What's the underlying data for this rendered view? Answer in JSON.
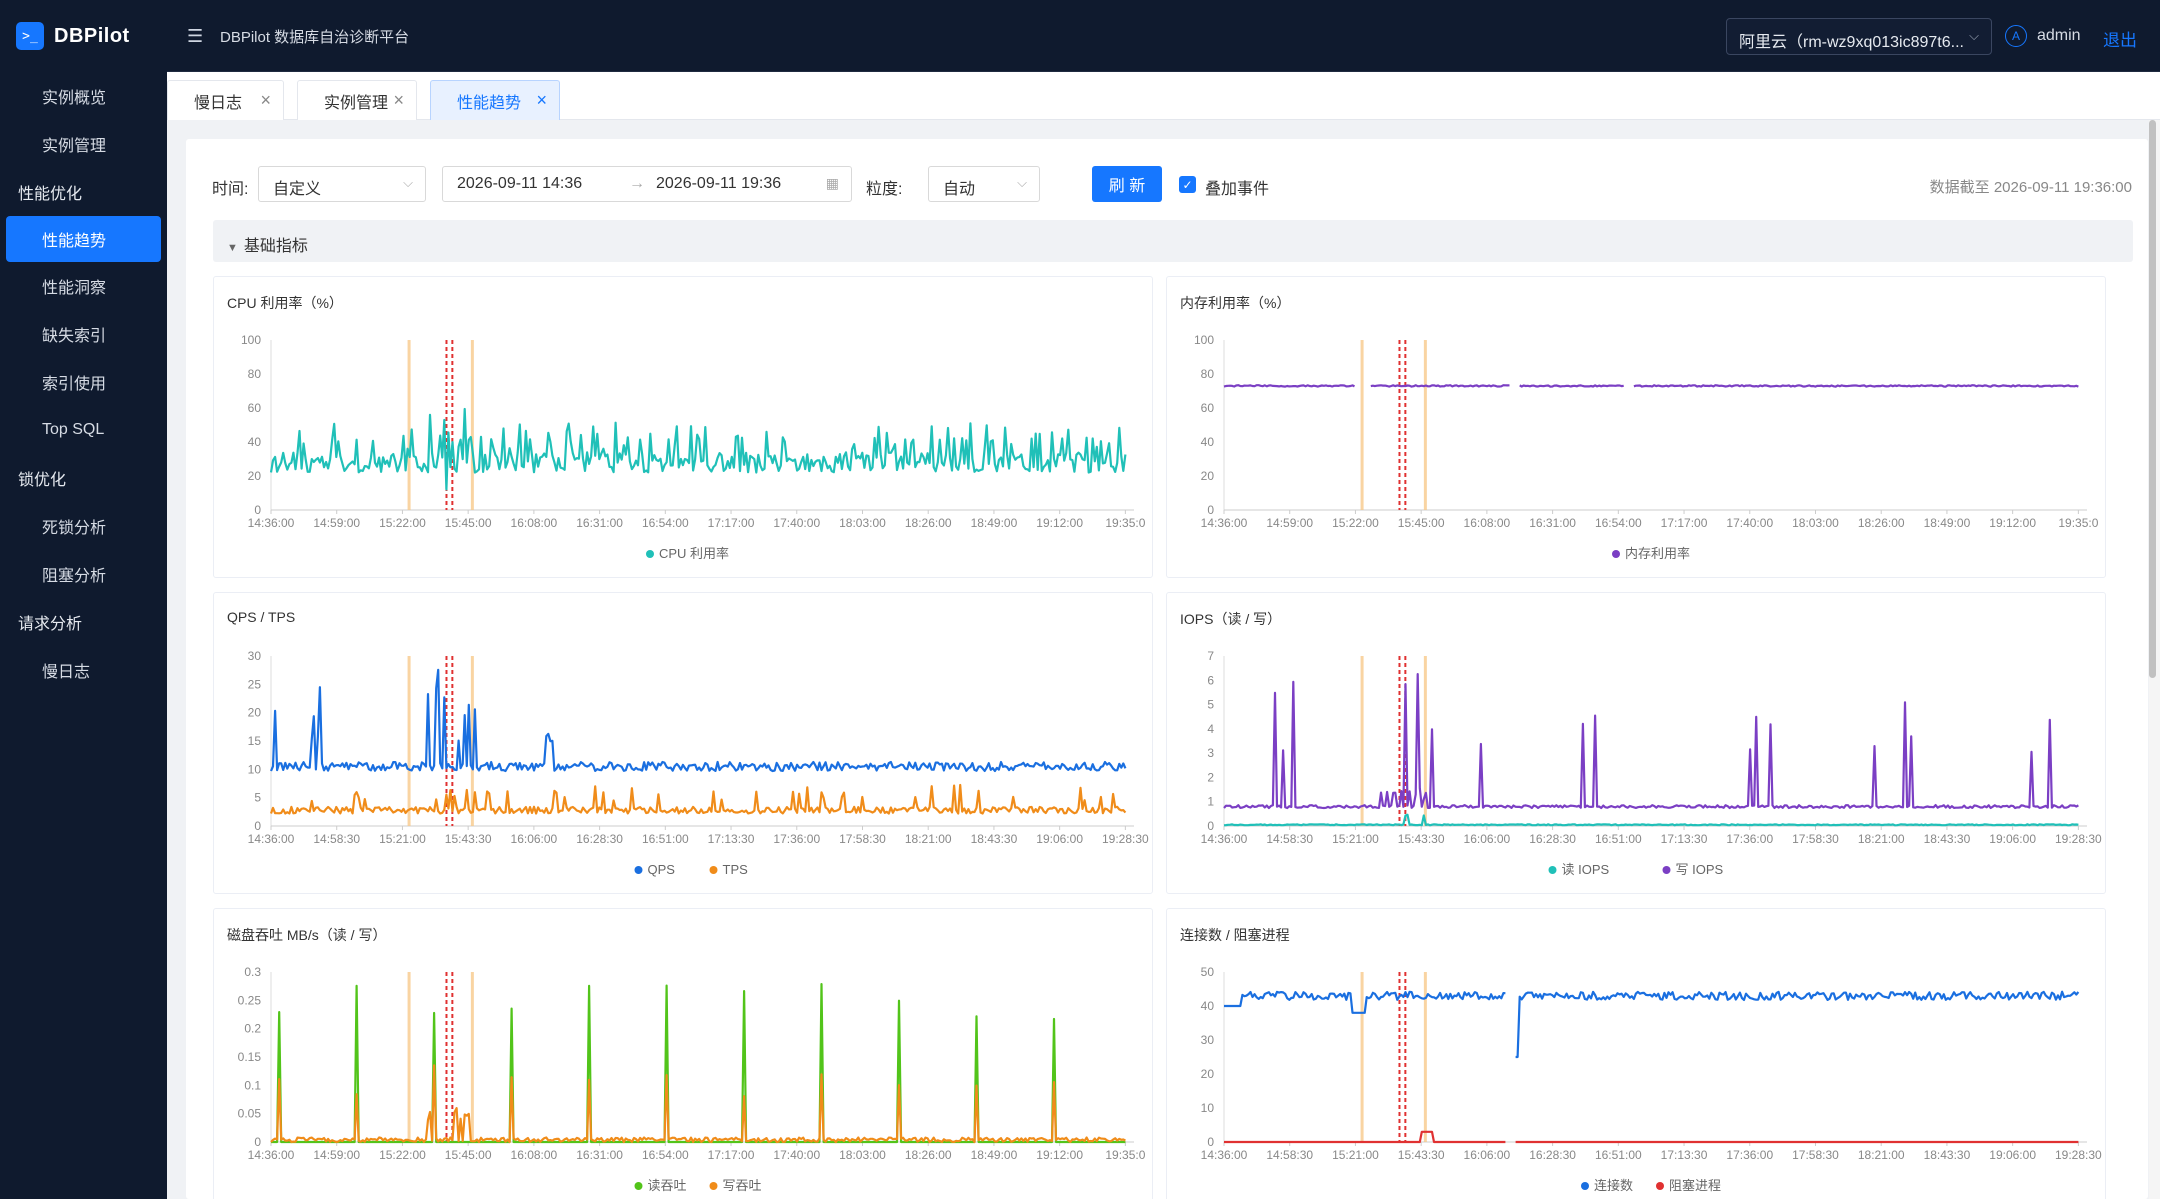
{
  "app": {
    "logo_glyph": ">_",
    "logo_text": "DBPilot",
    "title": "DBPilot 数据库自治诊断平台"
  },
  "header": {
    "instance": "阿里云（rm-wz9xq013ic897t6...",
    "avatar_initial": "A",
    "username": "admin",
    "logout": "退出"
  },
  "sidebar": {
    "items": [
      {
        "label": "实例概览",
        "type": "sub"
      },
      {
        "label": "实例管理",
        "type": "sub"
      },
      {
        "label": "性能优化",
        "type": "group"
      },
      {
        "label": "性能趋势",
        "type": "sub",
        "active": true
      },
      {
        "label": "性能洞察",
        "type": "sub"
      },
      {
        "label": "缺失索引",
        "type": "sub"
      },
      {
        "label": "索引使用",
        "type": "sub"
      },
      {
        "label": "Top SQL",
        "type": "sub"
      },
      {
        "label": "锁优化",
        "type": "group"
      },
      {
        "label": "死锁分析",
        "type": "sub"
      },
      {
        "label": "阻塞分析",
        "type": "sub"
      },
      {
        "label": "请求分析",
        "type": "group"
      },
      {
        "label": "慢日志",
        "type": "sub"
      }
    ]
  },
  "tabs": [
    {
      "label": "慢日志",
      "active": false
    },
    {
      "label": "实例管理",
      "active": false
    },
    {
      "label": "性能趋势",
      "active": true
    }
  ],
  "filters": {
    "time_label": "时间:",
    "time_mode": "自定义",
    "range_start": "2026-09-11 14:36",
    "range_sep": "→",
    "range_end": "2026-09-11 19:36",
    "granularity_label": "粒度:",
    "granularity": "自动",
    "refresh": "刷 新",
    "overlay_events": "叠加事件",
    "overlay_checked": true,
    "data_as_of": "数据截至 2026-09-11 19:36:00"
  },
  "section": {
    "title": "基础指标"
  },
  "colors": {
    "accent": "#1677ff",
    "sidebar_bg": "#0f1a2e",
    "event_marker": "#e03131",
    "event_band": "#f7c98b"
  },
  "chart_data": [
    {
      "id": "cpu",
      "type": "line",
      "title": "CPU 利用率（%）",
      "ylim": [
        0,
        100
      ],
      "y_ticks": [
        "0",
        "20",
        "40",
        "60",
        "80",
        "100"
      ],
      "x_ticks": [
        "14:36:00",
        "14:59:00",
        "15:22:00",
        "15:45:00",
        "16:08:00",
        "16:31:00",
        "16:54:00",
        "17:17:00",
        "17:40:00",
        "18:03:00",
        "18:26:00",
        "18:49:00",
        "19:12:00",
        "19:35:0"
      ],
      "events": {
        "bands": [
          "15:24",
          "15:46"
        ],
        "markers": [
          "15:37",
          "15:38"
        ]
      },
      "series": [
        {
          "name": "CPU 利用率",
          "color": "#20c0b8",
          "shape": "spiky",
          "base": 28,
          "noise": 6,
          "spikes": 40,
          "spike_h": 18
        }
      ]
    },
    {
      "id": "mem",
      "type": "line",
      "title": "内存利用率（%）",
      "ylim": [
        0,
        100
      ],
      "y_ticks": [
        "0",
        "20",
        "40",
        "60",
        "80",
        "100"
      ],
      "x_ticks": [
        "14:36:00",
        "14:59:00",
        "15:22:00",
        "15:45:00",
        "16:08:00",
        "16:31:00",
        "16:54:00",
        "17:17:00",
        "17:40:00",
        "18:03:00",
        "18:26:00",
        "18:49:00",
        "19:12:00",
        "19:35:0"
      ],
      "events": {
        "bands": [
          "15:24",
          "15:46"
        ],
        "markers": [
          "15:37",
          "15:38"
        ]
      },
      "series": [
        {
          "name": "内存利用率",
          "color": "#7b3fc4",
          "shape": "flat",
          "base": 73,
          "noise": 0.4,
          "gaps": [
            [
              0.155,
              0.17
            ],
            [
              0.335,
              0.345
            ],
            [
              0.47,
              0.478
            ]
          ]
        }
      ]
    },
    {
      "id": "qps",
      "type": "line",
      "title": "QPS / TPS",
      "ylim": [
        0,
        30
      ],
      "y_ticks": [
        "0",
        "5",
        "10",
        "15",
        "20",
        "25",
        "30"
      ],
      "x_ticks": [
        "14:36:00",
        "14:58:30",
        "15:21:00",
        "15:43:30",
        "16:06:00",
        "16:28:30",
        "16:51:00",
        "17:13:30",
        "17:36:00",
        "17:58:30",
        "18:21:00",
        "18:43:30",
        "19:06:00",
        "19:28:30"
      ],
      "events": {
        "bands": [
          "15:24",
          "15:46"
        ],
        "markers": [
          "15:37",
          "15:38"
        ]
      },
      "series": [
        {
          "name": "QPS",
          "color": "#1a6fe0",
          "shape": "qps",
          "base": 10.5,
          "noise": 0.8
        },
        {
          "name": "TPS",
          "color": "#f08c1a",
          "shape": "tps",
          "base": 2.8,
          "noise": 0.6
        }
      ]
    },
    {
      "id": "iops",
      "type": "line",
      "title": "IOPS（读 / 写）",
      "ylim": [
        0,
        7
      ],
      "y_ticks": [
        "0",
        "1",
        "2",
        "3",
        "4",
        "5",
        "6",
        "7"
      ],
      "x_ticks": [
        "14:36:00",
        "14:58:30",
        "15:21:00",
        "15:43:30",
        "16:06:00",
        "16:28:30",
        "16:51:00",
        "17:13:30",
        "17:36:00",
        "17:58:30",
        "18:21:00",
        "18:43:30",
        "19:06:00",
        "19:28:30"
      ],
      "events": {
        "bands": [
          "15:24",
          "15:46"
        ],
        "markers": [
          "15:37",
          "15:38"
        ]
      },
      "series": [
        {
          "name": "读 IOPS",
          "color": "#20c0b8",
          "shape": "low",
          "base": 0.05,
          "noise": 0.02
        },
        {
          "name": "写 IOPS",
          "color": "#7b3fc4",
          "shape": "iops",
          "base": 0.8,
          "noise": 0.06
        }
      ]
    },
    {
      "id": "disk",
      "type": "line",
      "title": "磁盘吞吐 MB/s（读 / 写）",
      "ylim": [
        0,
        0.3
      ],
      "y_ticks": [
        "0",
        "0.05",
        "0.1",
        "0.15",
        "0.2",
        "0.25",
        "0.3"
      ],
      "x_ticks": [
        "14:36:00",
        "14:59:00",
        "15:22:00",
        "15:45:00",
        "16:08:00",
        "16:31:00",
        "16:54:00",
        "17:17:00",
        "17:40:00",
        "18:03:00",
        "18:26:00",
        "18:49:00",
        "19:12:00",
        "19:35:0"
      ],
      "events": {
        "bands": [
          "15:24",
          "15:46"
        ],
        "markers": [
          "15:37",
          "15:38"
        ]
      },
      "series": [
        {
          "name": "读吞吐",
          "color": "#52c41a",
          "shape": "disk_r",
          "base": 0,
          "noise": 0
        },
        {
          "name": "写吞吐",
          "color": "#f08c1a",
          "shape": "disk_w",
          "base": 0.004,
          "noise": 0.004
        }
      ]
    },
    {
      "id": "conn",
      "type": "line",
      "title": "连接数 / 阻塞进程",
      "ylim": [
        0,
        50
      ],
      "y_ticks": [
        "0",
        "10",
        "20",
        "30",
        "40",
        "50"
      ],
      "x_ticks": [
        "14:36:00",
        "14:58:30",
        "15:21:00",
        "15:43:30",
        "16:06:00",
        "16:28:30",
        "16:51:00",
        "17:13:30",
        "17:36:00",
        "17:58:30",
        "18:21:00",
        "18:43:30",
        "19:06:00",
        "19:28:30"
      ],
      "events": {
        "bands": [
          "15:24",
          "15:46"
        ],
        "markers": [
          "15:37",
          "15:38"
        ]
      },
      "series": [
        {
          "name": "连接数",
          "color": "#1a6fe0",
          "shape": "conn",
          "base": 43,
          "noise": 1.2
        },
        {
          "name": "阻塞进程",
          "color": "#e03131",
          "shape": "block",
          "base": 0,
          "noise": 0
        }
      ]
    }
  ]
}
